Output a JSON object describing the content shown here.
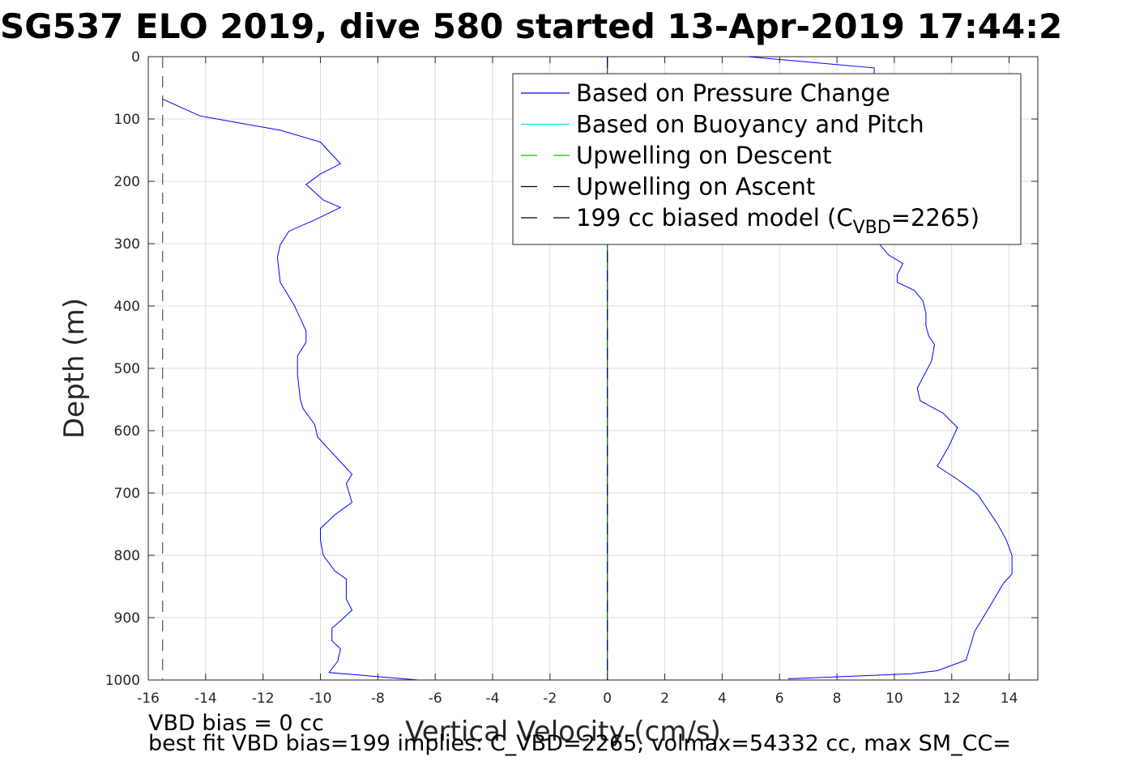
{
  "chart_data": {
    "type": "line",
    "title": "SG537 ELO 2019, dive 580 started 13-Apr-2019 17:44:2",
    "xlabel": "Vertical Velocity (cm/s)",
    "ylabel": "Depth (m)",
    "xlim": [
      -16,
      15
    ],
    "ylim": [
      0,
      1000
    ],
    "y_reversed": true,
    "grid": true,
    "legend_position": "top-right",
    "x_ticks": [
      -16,
      -14,
      -12,
      -10,
      -8,
      -6,
      -4,
      -2,
      0,
      2,
      4,
      6,
      8,
      10,
      12,
      14
    ],
    "y_ticks": [
      0,
      100,
      200,
      300,
      400,
      500,
      600,
      700,
      800,
      900,
      1000
    ],
    "legend": [
      {
        "label": "Based on Pressure Change",
        "color": "#0000ff",
        "dash": "solid"
      },
      {
        "label": "Based on Buoyancy and Pitch",
        "color": "#00e5e5",
        "dash": "solid"
      },
      {
        "label": "Upwelling on Descent",
        "color": "#00cc00",
        "dash": "dashed"
      },
      {
        "label": "Upwelling on Ascent",
        "color": "#000000",
        "dash": "dashed"
      },
      {
        "label": "199 cc biased model (C",
        "sub": "VBD",
        "suffix": "=2265)",
        "color": "#000000",
        "dash": "dashed"
      }
    ],
    "series": [
      {
        "name": "Based on Pressure Change (descent)",
        "color": "#0000ff",
        "points": [
          [
            -15.5,
            68
          ],
          [
            -14.2,
            95
          ],
          [
            -11.4,
            118
          ],
          [
            -10.0,
            137
          ],
          [
            -9.6,
            157
          ],
          [
            -9.3,
            172
          ],
          [
            -10.0,
            188
          ],
          [
            -10.5,
            205
          ],
          [
            -9.9,
            230
          ],
          [
            -9.3,
            242
          ],
          [
            -10.2,
            262
          ],
          [
            -11.1,
            280
          ],
          [
            -11.4,
            302
          ],
          [
            -11.5,
            322
          ],
          [
            -11.4,
            362
          ],
          [
            -11.2,
            377
          ],
          [
            -10.9,
            400
          ],
          [
            -10.5,
            440
          ],
          [
            -10.5,
            458
          ],
          [
            -10.8,
            480
          ],
          [
            -10.8,
            510
          ],
          [
            -10.7,
            550
          ],
          [
            -10.6,
            565
          ],
          [
            -10.2,
            590
          ],
          [
            -10.1,
            610
          ],
          [
            -9.8,
            625
          ],
          [
            -9.3,
            650
          ],
          [
            -8.9,
            670
          ],
          [
            -9.1,
            685
          ],
          [
            -9.0,
            700
          ],
          [
            -8.9,
            715
          ],
          [
            -9.5,
            735
          ],
          [
            -10.0,
            757
          ],
          [
            -10.0,
            775
          ],
          [
            -9.9,
            800
          ],
          [
            -9.5,
            825
          ],
          [
            -9.1,
            838
          ],
          [
            -9.1,
            870
          ],
          [
            -8.9,
            888
          ],
          [
            -9.3,
            905
          ],
          [
            -9.6,
            917
          ],
          [
            -9.6,
            937
          ],
          [
            -9.3,
            950
          ],
          [
            -9.4,
            970
          ],
          [
            -9.7,
            988
          ],
          [
            -7.9,
            995
          ],
          [
            -6.6,
            1000
          ]
        ]
      },
      {
        "name": "Based on Pressure Change (ascent)",
        "color": "#0000ff",
        "points": [
          [
            4.9,
            0
          ],
          [
            9.3,
            18
          ],
          [
            9.2,
            282
          ],
          [
            9.5,
            302
          ],
          [
            9.8,
            318
          ],
          [
            10.3,
            332
          ],
          [
            10.1,
            350
          ],
          [
            10.1,
            362
          ],
          [
            10.7,
            375
          ],
          [
            11.0,
            392
          ],
          [
            11.1,
            412
          ],
          [
            11.1,
            432
          ],
          [
            11.2,
            448
          ],
          [
            11.4,
            462
          ],
          [
            11.3,
            488
          ],
          [
            10.8,
            532
          ],
          [
            10.9,
            552
          ],
          [
            11.7,
            572
          ],
          [
            12.2,
            595
          ],
          [
            11.9,
            625
          ],
          [
            11.5,
            657
          ],
          [
            12.2,
            678
          ],
          [
            12.9,
            702
          ],
          [
            13.6,
            750
          ],
          [
            13.9,
            775
          ],
          [
            14.1,
            800
          ],
          [
            14.1,
            830
          ],
          [
            13.8,
            845
          ],
          [
            13.2,
            892
          ],
          [
            12.8,
            922
          ],
          [
            12.5,
            968
          ],
          [
            11.5,
            985
          ],
          [
            10.6,
            990
          ],
          [
            8.5,
            994
          ],
          [
            6.3,
            998
          ]
        ]
      }
    ],
    "reference_lines": [
      {
        "x": 0,
        "color": "#006400",
        "dash": "solid"
      },
      {
        "x": 0,
        "color": "#000080",
        "dash": "dashed"
      },
      {
        "x": -15.5,
        "color": "#555555",
        "dash": "dashed"
      }
    ]
  },
  "footer": {
    "line1": "VBD bias = 0 cc",
    "line2": "best fit VBD bias=199 implies: C_VBD=2265, volmax=54332 cc, max SM_CC="
  }
}
